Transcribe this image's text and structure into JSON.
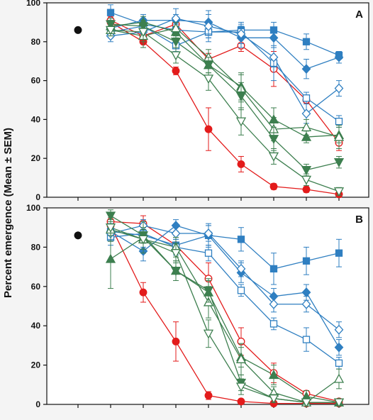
{
  "figure": {
    "ylabel": "Percent emergence (Mean ± SEM)"
  },
  "colors": {
    "red": "#e31b1b",
    "blue": "#2f7fc1",
    "green": "#3d7f4f",
    "black": "#111111"
  },
  "chart_data": [
    {
      "type": "scatter",
      "panel_label": "A",
      "ylim": [
        0,
        100
      ],
      "yticks": [
        0,
        20,
        40,
        60,
        80,
        100
      ],
      "x_positions": 9,
      "reference": {
        "x": 0,
        "y": 86,
        "err": 2,
        "marker": "circle-filled",
        "color": "black"
      },
      "series": [
        {
          "color": "red",
          "marker": "circle-filled",
          "x": [
            1,
            2,
            3,
            4,
            5,
            6,
            7,
            8,
            9
          ],
          "y": [
            90,
            80,
            65,
            35,
            17,
            5.5,
            4,
            1.5,
            null
          ],
          "err": [
            3,
            3,
            2,
            11,
            4,
            1.5,
            1.5,
            1.5,
            null
          ]
        },
        {
          "color": "red",
          "marker": "circle-open",
          "x": [
            1,
            2,
            3,
            4,
            5,
            6,
            7,
            8,
            9
          ],
          "y": [
            91,
            83,
            89,
            71,
            78,
            66,
            50,
            28,
            null
          ],
          "err": [
            3,
            3,
            3,
            3,
            3,
            9,
            2,
            4,
            null
          ]
        },
        {
          "color": "blue",
          "marker": "square-filled",
          "x": [
            1,
            2,
            3,
            4,
            5,
            6,
            7,
            8
          ],
          "y": [
            95,
            89,
            86,
            85,
            86,
            86,
            80,
            73
          ],
          "err": [
            4,
            3,
            3,
            5,
            4,
            4,
            4,
            2
          ]
        },
        {
          "color": "blue",
          "marker": "square-open",
          "x": [
            1,
            2,
            3,
            4,
            5,
            6,
            7,
            8
          ],
          "y": [
            85,
            88,
            78,
            85,
            85,
            69,
            51,
            39
          ],
          "err": [
            3,
            3,
            3,
            3,
            3,
            9,
            3,
            3
          ]
        },
        {
          "color": "blue",
          "marker": "diamond-filled",
          "x": [
            1,
            2,
            3,
            4,
            5,
            6,
            7,
            8
          ],
          "y": [
            87,
            91,
            91,
            90,
            82,
            82,
            66,
            72
          ],
          "err": [
            3,
            3,
            3,
            6,
            5,
            5,
            5,
            3
          ]
        },
        {
          "color": "blue",
          "marker": "diamond-open",
          "x": [
            1,
            2,
            3,
            4,
            5,
            6,
            7,
            8
          ],
          "y": [
            83,
            85,
            92,
            88,
            84,
            72,
            43,
            56
          ],
          "err": [
            3,
            3,
            5,
            6,
            5,
            5,
            5,
            4
          ]
        },
        {
          "color": "green",
          "marker": "triangle-up-filled",
          "x": [
            1,
            2,
            3,
            4,
            5,
            6,
            7,
            8
          ],
          "y": [
            88,
            90,
            85,
            68,
            57,
            40,
            31,
            32
          ],
          "err": [
            3,
            3,
            3,
            4,
            7,
            6,
            3,
            4
          ]
        },
        {
          "color": "green",
          "marker": "triangle-up-open",
          "x": [
            1,
            2,
            3,
            4,
            5,
            6,
            7,
            8
          ],
          "y": [
            86,
            83,
            87,
            72,
            56,
            35,
            36,
            31
          ],
          "err": [
            3,
            6,
            3,
            4,
            7,
            6,
            4,
            6
          ]
        },
        {
          "color": "green",
          "marker": "triangle-down-filled",
          "x": [
            1,
            2,
            3,
            4,
            5,
            6,
            7,
            8
          ],
          "y": [
            89,
            88,
            80,
            68,
            52,
            30,
            14,
            18
          ],
          "err": [
            3,
            3,
            3,
            4,
            7,
            6,
            3,
            3
          ]
        },
        {
          "color": "green",
          "marker": "triangle-down-open",
          "x": [
            1,
            2,
            3,
            4,
            5,
            6,
            7,
            8
          ],
          "y": [
            86,
            85,
            73,
            61,
            39,
            21,
            9,
            3
          ],
          "err": [
            3,
            5,
            4,
            6,
            7,
            4,
            3,
            2
          ]
        }
      ]
    },
    {
      "type": "scatter",
      "panel_label": "B",
      "ylim": [
        0,
        100
      ],
      "yticks": [
        0,
        20,
        40,
        60,
        80,
        100
      ],
      "x_positions": 9,
      "reference": {
        "x": 0,
        "y": 86,
        "err": 2,
        "marker": "circle-filled",
        "color": "black"
      },
      "series": [
        {
          "color": "red",
          "marker": "circle-filled",
          "x": [
            1,
            2,
            3,
            4,
            5,
            6,
            7,
            8,
            9
          ],
          "y": [
            91,
            57,
            32,
            4.5,
            1.5,
            0.5,
            0.5,
            0.5,
            null
          ],
          "err": [
            3,
            5,
            10,
            2,
            1,
            0.5,
            0.5,
            0.5,
            null
          ]
        },
        {
          "color": "red",
          "marker": "circle-open",
          "x": [
            1,
            2,
            3,
            4,
            5,
            6,
            7,
            8,
            9
          ],
          "y": [
            93,
            92,
            81,
            64,
            32,
            16,
            5.5,
            1.5,
            null
          ],
          "err": [
            3,
            4,
            5,
            8,
            7,
            5,
            1.5,
            1,
            null
          ]
        },
        {
          "color": "blue",
          "marker": "square-filled",
          "x": [
            1,
            2,
            3,
            4,
            5,
            6,
            7,
            8
          ],
          "y": [
            88,
            86,
            81,
            86,
            84,
            69,
            73,
            77
          ],
          "err": [
            4,
            6,
            4,
            6,
            6,
            8,
            7,
            7
          ]
        },
        {
          "color": "blue",
          "marker": "square-open",
          "x": [
            1,
            2,
            3,
            4,
            5,
            6,
            7,
            8
          ],
          "y": [
            85,
            87,
            80,
            77,
            58,
            41,
            33,
            21
          ],
          "err": [
            4,
            4,
            4,
            4,
            3,
            3,
            6,
            3
          ]
        },
        {
          "color": "blue",
          "marker": "diamond-filled",
          "x": [
            1,
            2,
            3,
            4,
            5,
            6,
            7,
            8
          ],
          "y": [
            88,
            78,
            91,
            86,
            67,
            55,
            57,
            29
          ],
          "err": [
            4,
            5,
            3,
            5,
            5,
            4,
            4,
            4
          ]
        },
        {
          "color": "blue",
          "marker": "diamond-open",
          "x": [
            1,
            2,
            3,
            4,
            5,
            6,
            7,
            8
          ],
          "y": [
            87,
            91,
            87,
            87,
            69,
            51,
            51,
            38
          ],
          "err": [
            4,
            3,
            3,
            4,
            4,
            4,
            4,
            4
          ]
        },
        {
          "color": "green",
          "marker": "triangle-up-filled",
          "x": [
            1,
            2,
            3,
            4,
            5,
            6,
            7,
            8
          ],
          "y": [
            74,
            85,
            68,
            57,
            24,
            15,
            4,
            1
          ],
          "err": [
            15,
            8,
            5,
            6,
            5,
            5,
            3,
            1
          ]
        },
        {
          "color": "green",
          "marker": "triangle-up-open",
          "x": [
            1,
            2,
            3,
            4,
            5,
            6,
            7,
            8
          ],
          "y": [
            89,
            84,
            80,
            52,
            23,
            6,
            1,
            13
          ],
          "err": [
            6,
            5,
            5,
            8,
            8,
            3,
            1,
            5
          ]
        },
        {
          "color": "green",
          "marker": "triangle-down-filled",
          "x": [
            1,
            2,
            3,
            4,
            5,
            6,
            7,
            8
          ],
          "y": [
            96,
            86,
            68,
            58,
            11,
            3,
            1,
            1
          ],
          "err": [
            3,
            4,
            5,
            6,
            4,
            2,
            1,
            1
          ]
        },
        {
          "color": "green",
          "marker": "triangle-down-open",
          "x": [
            1,
            2,
            3,
            4,
            5,
            6,
            7,
            8
          ],
          "y": [
            90,
            84,
            77,
            36,
            9,
            3,
            1,
            1
          ],
          "err": [
            4,
            5,
            5,
            7,
            4,
            2,
            1,
            1
          ]
        }
      ]
    }
  ]
}
